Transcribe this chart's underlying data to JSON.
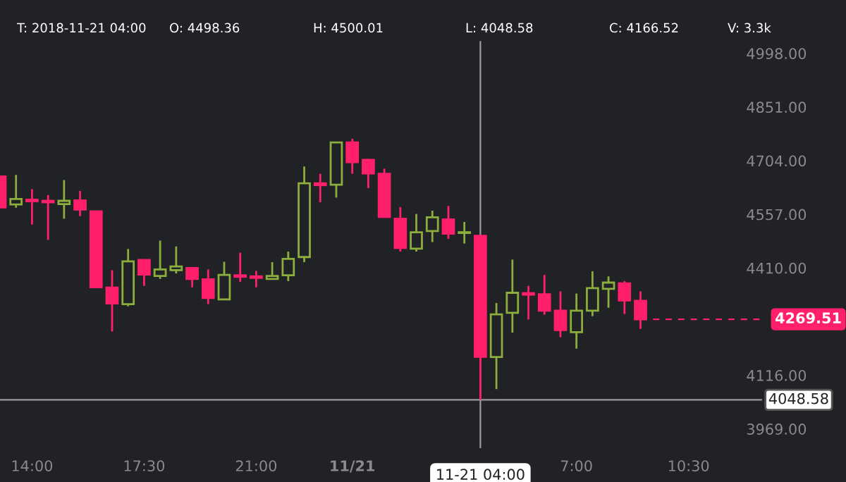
{
  "chart_data": {
    "type": "candlestick",
    "annotations": [
      "T: 2018-11-21 04:00",
      "O: 4498.36",
      "H: 4500.01",
      "L: 4048.58",
      "C: 4166.52",
      "V: 3.3k"
    ],
    "x": [
      "2018-11-20T13:00",
      "2018-11-20T13:30",
      "2018-11-20T14:00",
      "2018-11-20T14:30",
      "2018-11-20T15:00",
      "2018-11-20T15:30",
      "2018-11-20T16:00",
      "2018-11-20T16:30",
      "2018-11-20T17:00",
      "2018-11-20T17:30",
      "2018-11-20T18:00",
      "2018-11-20T18:30",
      "2018-11-20T19:00",
      "2018-11-20T19:30",
      "2018-11-20T20:00",
      "2018-11-20T20:30",
      "2018-11-20T21:00",
      "2018-11-20T21:30",
      "2018-11-20T22:00",
      "2018-11-20T22:30",
      "2018-11-20T23:00",
      "2018-11-20T23:30",
      "2018-11-21T00:00",
      "2018-11-21T00:30",
      "2018-11-21T01:00",
      "2018-11-21T01:30",
      "2018-11-21T02:00",
      "2018-11-21T02:30",
      "2018-11-21T03:00",
      "2018-11-21T03:30",
      "2018-11-21T04:00",
      "2018-11-21T04:30",
      "2018-11-21T05:00",
      "2018-11-21T05:30",
      "2018-11-21T06:00",
      "2018-11-21T06:30",
      "2018-11-21T07:00",
      "2018-11-21T07:30",
      "2018-11-21T08:00",
      "2018-11-21T08:30",
      "2018-11-21T09:00"
    ],
    "ohlc": [
      [
        4661,
        4661,
        4576,
        4576
      ],
      [
        4584,
        4665,
        4575,
        4599
      ],
      [
        4597,
        4626,
        4529,
        4593
      ],
      [
        4594,
        4610,
        4487,
        4590
      ],
      [
        4585,
        4651,
        4545,
        4594
      ],
      [
        4595,
        4621,
        4552,
        4570
      ],
      [
        4565,
        4567,
        4355,
        4357
      ],
      [
        4356,
        4404,
        4236,
        4313
      ],
      [
        4311,
        4462,
        4305,
        4428
      ],
      [
        4432,
        4432,
        4361,
        4392
      ],
      [
        4388,
        4485,
        4380,
        4406
      ],
      [
        4404,
        4469,
        4395,
        4414
      ],
      [
        4410,
        4410,
        4357,
        4380
      ],
      [
        4379,
        4406,
        4311,
        4328
      ],
      [
        4324,
        4427,
        4323,
        4391
      ],
      [
        4390,
        4452,
        4372,
        4386
      ],
      [
        4387,
        4402,
        4357,
        4383
      ],
      [
        4380,
        4426,
        4378,
        4388
      ],
      [
        4390,
        4455,
        4374,
        4435
      ],
      [
        4440,
        4688,
        4426,
        4642
      ],
      [
        4642,
        4668,
        4590,
        4637
      ],
      [
        4638,
        4755,
        4603,
        4754
      ],
      [
        4754,
        4764,
        4668,
        4700
      ],
      [
        4706,
        4709,
        4629,
        4669
      ],
      [
        4668,
        4682,
        4548,
        4550
      ],
      [
        4545,
        4577,
        4455,
        4465
      ],
      [
        4463,
        4558,
        4455,
        4508
      ],
      [
        4511,
        4567,
        4481,
        4549
      ],
      [
        4543,
        4580,
        4490,
        4504
      ],
      [
        4506,
        4536,
        4477,
        4508
      ],
      [
        4498.36,
        4500.01,
        4048.58,
        4166.52
      ],
      [
        4166,
        4314,
        4078,
        4283
      ],
      [
        4287,
        4433,
        4233,
        4342
      ],
      [
        4341,
        4361,
        4269,
        4337
      ],
      [
        4338,
        4391,
        4282,
        4293
      ],
      [
        4293,
        4346,
        4220,
        4240
      ],
      [
        4234,
        4340,
        4189,
        4293
      ],
      [
        4293,
        4401,
        4278,
        4355
      ],
      [
        4353,
        4387,
        4301,
        4370
      ],
      [
        4368,
        4374,
        4284,
        4321
      ],
      [
        4320,
        4346,
        4243,
        4269.51
      ]
    ],
    "colors": [
      "#ff1f6b",
      "#8cae3c",
      "#ff1f6b",
      "#ff1f6b",
      "#8cae3c",
      "#ff1f6b",
      "#ff1f6b",
      "#ff1f6b",
      "#8cae3c",
      "#ff1f6b",
      "#8cae3c",
      "#8cae3c",
      "#ff1f6b",
      "#ff1f6b",
      "#8cae3c",
      "#ff1f6b",
      "#ff1f6b",
      "#8cae3c",
      "#8cae3c",
      "#8cae3c",
      "#ff1f6b",
      "#8cae3c",
      "#ff1f6b",
      "#ff1f6b",
      "#ff1f6b",
      "#ff1f6b",
      "#8cae3c",
      "#8cae3c",
      "#ff1f6b",
      "#8cae3c",
      "#ff1f6b",
      "#8cae3c",
      "#8cae3c",
      "#ff1f6b",
      "#ff1f6b",
      "#ff1f6b",
      "#8cae3c",
      "#8cae3c",
      "#8cae3c",
      "#ff1f6b",
      "#ff1f6b"
    ],
    "xlim": [
      "2018-11-20T13:00",
      "2018-11-21T15:25"
    ],
    "xticks": [
      {
        "value": "2018-11-20T14:00",
        "label": "14:00"
      },
      {
        "value": "2018-11-20T17:30",
        "label": "17:30"
      },
      {
        "value": "2018-11-20T21:00",
        "label": "21:00"
      },
      {
        "value": "2018-11-21T00:00",
        "label": "11/21"
      },
      {
        "value": "2018-11-21T07:00",
        "label": "7:00"
      },
      {
        "value": "2018-11-21T10:30",
        "label": "10:30"
      }
    ],
    "ylim": [
      3916,
      5036
    ],
    "yticks": [
      {
        "value": 3969,
        "label": "3969.00"
      },
      {
        "value": 4116,
        "label": "4116.00"
      },
      {
        "value": 4410,
        "label": "4410.00"
      },
      {
        "value": 4557,
        "label": "4557.00"
      },
      {
        "value": 4704,
        "label": "4704.00"
      },
      {
        "value": 4851,
        "label": "4851.00"
      },
      {
        "value": 4998,
        "label": "4998.00"
      }
    ],
    "ref_lines": [
      {
        "axis": "y",
        "value": 4269.51,
        "label": "4269.51",
        "color": "#ff1f6b",
        "line_style": "dashed"
      },
      {
        "axis": "x",
        "value": "2018-11-21T04:00",
        "label": "11-21 04:00",
        "color": "#9a9ba0",
        "line_style": "solid"
      },
      {
        "axis": "y",
        "value": 4048.58,
        "label": "4048.58",
        "color": "#9a9ba0",
        "line_style": "solid"
      }
    ],
    "grid": false
  }
}
